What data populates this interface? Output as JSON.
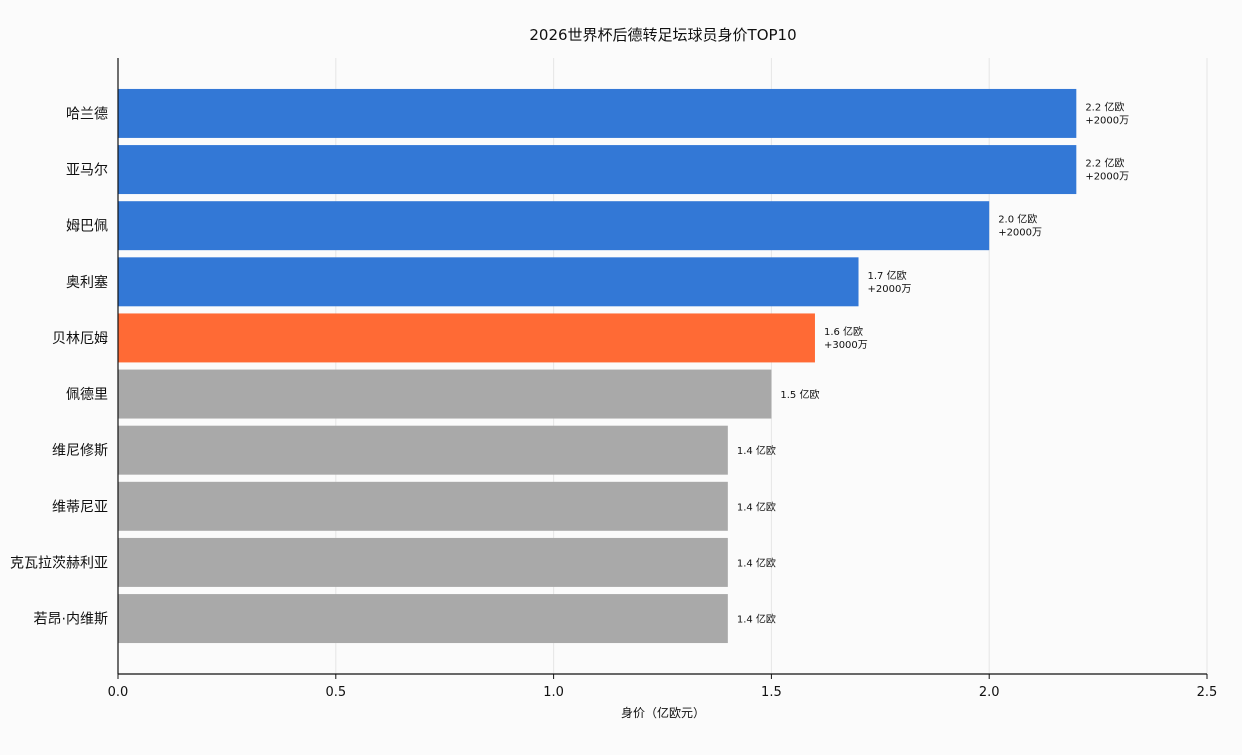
{
  "chart_data": {
    "type": "bar",
    "orientation": "horizontal",
    "title": "2026世界杯后德转足坛球员身价TOP10",
    "xlabel": "身价（亿欧元）",
    "ylabel": "",
    "xlim": [
      0,
      2.5
    ],
    "xticks": [
      0.0,
      0.5,
      1.0,
      1.5,
      2.0,
      2.5
    ],
    "xtick_labels": [
      "0.0",
      "0.5",
      "1.0",
      "1.5",
      "2.0",
      "2.5"
    ],
    "grid": "vertical",
    "categories": [
      "哈兰德",
      "亚马尔",
      "姆巴佩",
      "奥利塞",
      "贝林厄姆",
      "佩德里",
      "维尼修斯",
      "维蒂尼亚",
      "克瓦拉茨赫利亚",
      "若昂·内维斯"
    ],
    "values": [
      2.2,
      2.2,
      2.0,
      1.7,
      1.6,
      1.5,
      1.4,
      1.4,
      1.4,
      1.4
    ],
    "value_labels": [
      "2.2 亿欧",
      "2.2 亿欧",
      "2.0 亿欧",
      "1.7 亿欧",
      "1.6 亿欧",
      "1.5 亿欧",
      "1.4 亿欧",
      "1.4 亿欧",
      "1.4 亿欧",
      "1.4 亿欧"
    ],
    "change_labels": [
      "+2000万",
      "+2000万",
      "+2000万",
      "+2000万",
      "+3000万",
      "",
      "",
      "",
      "",
      ""
    ],
    "bar_colors": [
      "#3378d6",
      "#3378d6",
      "#3378d6",
      "#3378d6",
      "#ff6a35",
      "#a9a9a9",
      "#a9a9a9",
      "#a9a9a9",
      "#a9a9a9",
      "#a9a9a9"
    ]
  }
}
